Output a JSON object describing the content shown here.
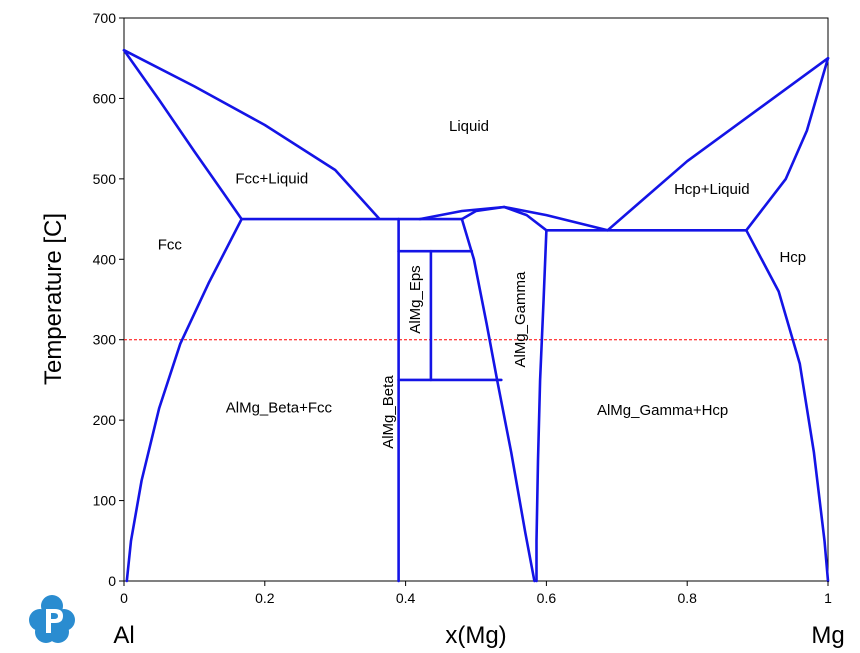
{
  "chart_data": {
    "type": "phase-diagram",
    "ylabel": "Temperature [C]",
    "xlabel": "x(Mg)",
    "x_left_label": "Al",
    "x_right_label": "Mg",
    "xlim": [
      0,
      1
    ],
    "ylim": [
      0,
      700
    ],
    "x_ticks": [
      0,
      0.2,
      0.4,
      0.6,
      0.8,
      1
    ],
    "x_tick_labels": [
      "0",
      "0.2",
      "0.4",
      "0.6",
      "0.8",
      "1"
    ],
    "y_ticks": [
      0,
      100,
      200,
      300,
      400,
      500,
      600,
      700
    ],
    "y_tick_labels": [
      "0",
      "100",
      "200",
      "300",
      "400",
      "500",
      "600",
      "700"
    ],
    "grid": false,
    "colors": {
      "boundary": "#1414e6",
      "reference_line": "#ff0000"
    },
    "reference_line": {
      "y": 300,
      "style": "dashed"
    },
    "region_labels": [
      {
        "text": "Liquid",
        "x": 0.49,
        "y": 565,
        "rotation": 0
      },
      {
        "text": "Fcc+Liquid",
        "x": 0.21,
        "y": 500,
        "rotation": 0
      },
      {
        "text": "Hcp+Liquid",
        "x": 0.835,
        "y": 487,
        "rotation": 0
      },
      {
        "text": "Fcc",
        "x": 0.065,
        "y": 418,
        "rotation": 0
      },
      {
        "text": "Hcp",
        "x": 0.95,
        "y": 402,
        "rotation": 0
      },
      {
        "text": "AlMg_Beta+Fcc",
        "x": 0.22,
        "y": 215,
        "rotation": 0
      },
      {
        "text": "AlMg_Gamma+Hcp",
        "x": 0.765,
        "y": 212,
        "rotation": 0
      },
      {
        "text": "AlMg_Beta",
        "x": 0.376,
        "y": 210,
        "rotation": -90
      },
      {
        "text": "AlMg_Eps",
        "x": 0.414,
        "y": 350,
        "rotation": -90
      },
      {
        "text": "AlMg_Gamma",
        "x": 0.563,
        "y": 325,
        "rotation": -90
      }
    ],
    "series": [
      {
        "points": [
          [
            0,
            660
          ],
          [
            0.05,
            598
          ],
          [
            0.1,
            534
          ],
          [
            0.14,
            484
          ],
          [
            0.167,
            450
          ]
        ]
      },
      {
        "points": [
          [
            0,
            660
          ],
          [
            0.1,
            615
          ],
          [
            0.2,
            567
          ],
          [
            0.3,
            511
          ],
          [
            0.362,
            451
          ]
        ]
      },
      {
        "points": [
          [
            0.167,
            450
          ],
          [
            0.12,
            370
          ],
          [
            0.08,
            295
          ],
          [
            0.05,
            215
          ],
          [
            0.025,
            125
          ],
          [
            0.01,
            50
          ],
          [
            0.004,
            0
          ]
        ]
      },
      {
        "points": [
          [
            0.167,
            450
          ],
          [
            0.48,
            450
          ]
        ]
      },
      {
        "points": [
          [
            0.39,
            450
          ],
          [
            0.39,
            0
          ]
        ]
      },
      {
        "points": [
          [
            0.39,
            410
          ],
          [
            0.494,
            410
          ]
        ]
      },
      {
        "points": [
          [
            0.39,
            250
          ],
          [
            0.536,
            250
          ]
        ]
      },
      {
        "points": [
          [
            0.436,
            410
          ],
          [
            0.436,
            250
          ]
        ]
      },
      {
        "points": [
          [
            0.42,
            450
          ],
          [
            0.48,
            460
          ],
          [
            0.54,
            465
          ],
          [
            0.6,
            455
          ],
          [
            0.687,
            436
          ]
        ]
      },
      {
        "points": [
          [
            0.48,
            450
          ],
          [
            0.497,
            400
          ],
          [
            0.515,
            320
          ],
          [
            0.53,
            250
          ],
          [
            0.55,
            160
          ],
          [
            0.57,
            60
          ],
          [
            0.583,
            0
          ]
        ]
      },
      {
        "points": [
          [
            0.48,
            450
          ],
          [
            0.5,
            460
          ],
          [
            0.54,
            465
          ],
          [
            0.572,
            455
          ],
          [
            0.6,
            436
          ]
        ]
      },
      {
        "points": [
          [
            0.6,
            436
          ],
          [
            0.596,
            350
          ],
          [
            0.591,
            250
          ],
          [
            0.588,
            150
          ],
          [
            0.586,
            50
          ],
          [
            0.586,
            0
          ]
        ]
      },
      {
        "points": [
          [
            0.6,
            436
          ],
          [
            0.884,
            436
          ]
        ]
      },
      {
        "points": [
          [
            0.687,
            436
          ],
          [
            0.8,
            522
          ],
          [
            0.9,
            586
          ],
          [
            1,
            650
          ]
        ]
      },
      {
        "points": [
          [
            0.884,
            436
          ],
          [
            0.94,
            500
          ],
          [
            0.97,
            560
          ],
          [
            1,
            650
          ]
        ]
      },
      {
        "points": [
          [
            0.884,
            436
          ],
          [
            0.93,
            360
          ],
          [
            0.96,
            270
          ],
          [
            0.98,
            160
          ],
          [
            0.995,
            50
          ],
          [
            1,
            0
          ]
        ]
      }
    ]
  }
}
